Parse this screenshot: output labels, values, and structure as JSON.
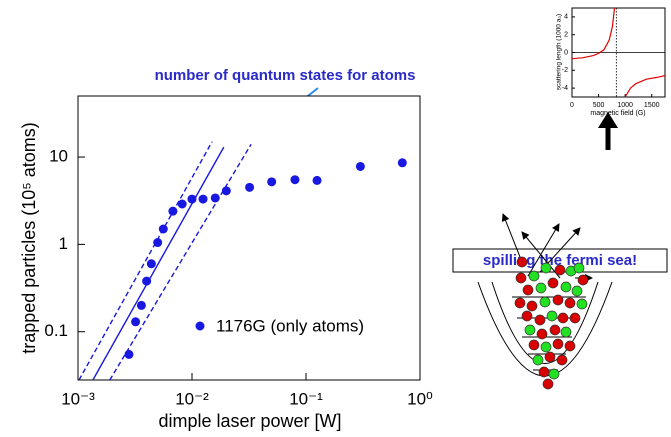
{
  "chart_data": [
    {
      "type": "scatter",
      "xlabel": "dimple laser power [W]",
      "ylabel": "trapped particles (10⁵ atoms)",
      "annotation": "number of quantum states for atoms",
      "log_x": true,
      "log_y": true,
      "xlim": [
        0.001,
        1
      ],
      "ylim": [
        0.028,
        50
      ],
      "xticks": [
        {
          "value": 0.001,
          "label": "10⁻³"
        },
        {
          "value": 0.01,
          "label": "10⁻²"
        },
        {
          "value": 0.1,
          "label": "10⁻¹"
        },
        {
          "value": 1,
          "label": "10⁰"
        }
      ],
      "yticks": [
        0.1,
        1,
        10
      ],
      "series": [
        {
          "name": "1176G (only atoms)",
          "color": "#1818e0",
          "x": [
            0.0028,
            0.0032,
            0.0036,
            0.004,
            0.0044,
            0.005,
            0.0056,
            0.0068,
            0.0082,
            0.01,
            0.0125,
            0.016,
            0.02,
            0.032,
            0.05,
            0.08,
            0.125,
            0.3,
            0.7
          ],
          "values": [
            0.055,
            0.13,
            0.2,
            0.38,
            0.6,
            1.05,
            1.5,
            2.4,
            2.9,
            3.3,
            3.3,
            3.4,
            4.1,
            4.5,
            5.2,
            5.5,
            5.4,
            7.8,
            8.6
          ]
        }
      ],
      "lines": [
        {
          "style": "solid",
          "color": "#1818e0",
          "x": [
            0.00135,
            0.019
          ],
          "values": [
            0.028,
            13
          ]
        },
        {
          "style": "dashed",
          "color": "#1818e0",
          "x": [
            0.00102,
            0.015
          ],
          "values": [
            0.028,
            15
          ]
        },
        {
          "style": "dashed",
          "color": "#1818e0",
          "x": [
            0.0019,
            0.033
          ],
          "values": [
            0.028,
            14
          ]
        }
      ]
    },
    {
      "type": "line",
      "xlabel": "magnetic field (G)",
      "ylabel": "scattering length (1000 a₀)",
      "xlim": [
        0,
        1750
      ],
      "ylim": [
        -5,
        5
      ],
      "xticks": [
        0,
        500,
        1000,
        1500
      ],
      "yticks": [
        -4,
        -2,
        0,
        2,
        4
      ],
      "vline": 834,
      "series": [
        {
          "color": "#e00000",
          "x": [
            0,
            200,
            400,
            500,
            600,
            700,
            760,
            800,
            900,
            1000,
            1100,
            1200,
            1400,
            1600,
            1750
          ],
          "values": [
            -0.7,
            -0.6,
            -0.35,
            -0.1,
            0.3,
            1.4,
            2.9,
            5,
            null,
            -5,
            -4,
            -3.5,
            -3,
            -2.8,
            -2.6
          ]
        }
      ]
    }
  ],
  "callout": {
    "text": "spilling the fermi sea!"
  }
}
